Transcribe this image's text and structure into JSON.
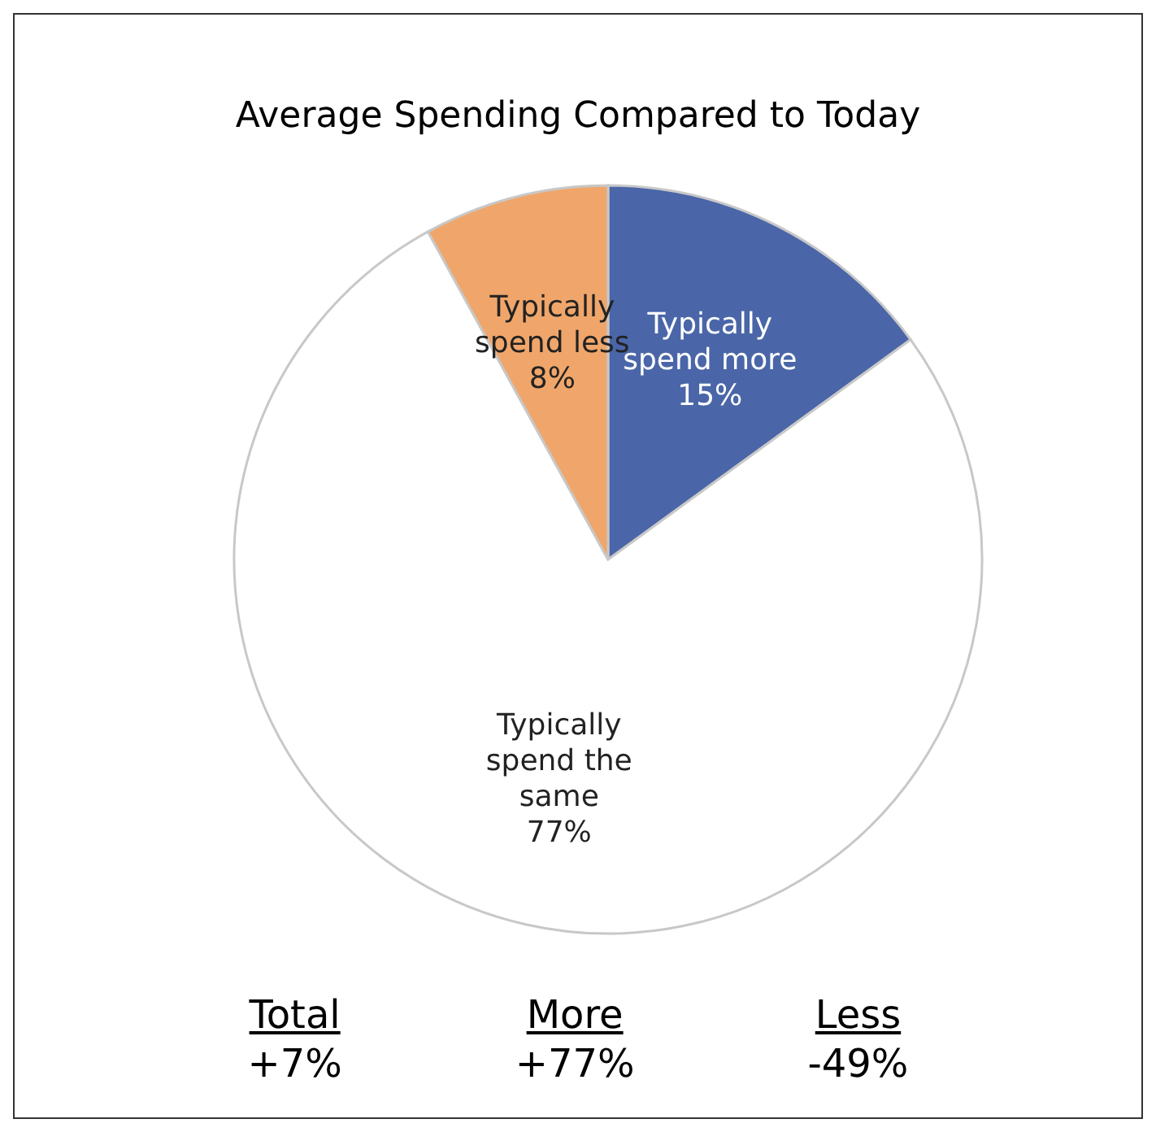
{
  "chart_data": {
    "type": "pie",
    "title": "Average Spending Compared to Today",
    "categories": [
      "Typically spend more",
      "Typically spend the same",
      "Typically spend less"
    ],
    "values": [
      15,
      77,
      8
    ],
    "colors": [
      "#4a66a8",
      "#ffffff",
      "#f0a66a"
    ],
    "value_labels": [
      "15%",
      "77%",
      "8%"
    ],
    "annotations": [
      "Total",
      "+7%",
      "More",
      "+77%",
      "Less",
      "-49%"
    ]
  }
}
